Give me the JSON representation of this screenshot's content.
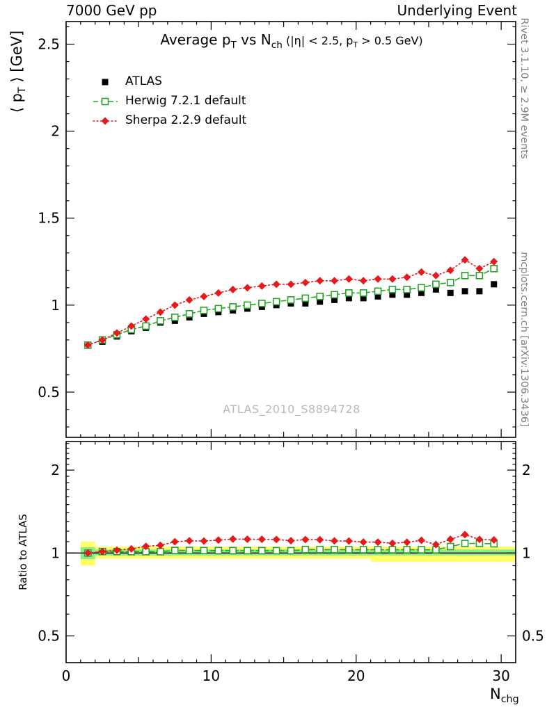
{
  "header": {
    "left": "7000 GeV pp",
    "right": "Underlying Event"
  },
  "title": {
    "pre": "Average p",
    "sub1": "T",
    "mid": " vs N",
    "sub2": "ch",
    "paren_pre": " (|η| < 2.5, p",
    "paren_sub": "T",
    "paren_post": " > 0.5 GeV)"
  },
  "axis": {
    "y_pre": "⟨ p",
    "y_sub": "T",
    "y_post": " ⟩ [GeV]",
    "ratio_label": "Ratio to ATLAS",
    "x_pre": "N",
    "x_sub": "chg"
  },
  "legend": {
    "entries": [
      {
        "label": "ATLAS"
      },
      {
        "label": "Herwig 7.2.1 default"
      },
      {
        "label": "Sherpa 2.2.9 default"
      }
    ]
  },
  "watermark": "ATLAS_2010_S8894728",
  "side_notes": {
    "top": "Rivet 3.1.10, ≥ 2.9M events",
    "bottom": "mcplots.cern.ch [arXiv:1306.3436]"
  },
  "chart_data": {
    "type": "scatter",
    "title": "Average pT vs Nch (|eta| < 2.5, pT > 0.5 GeV)",
    "xlabel": "Nchg",
    "ylabel": "<pT> [GeV]",
    "ratio_ylabel": "Ratio to ATLAS",
    "xlim": [
      0,
      31
    ],
    "xticks": [
      0,
      10,
      20,
      30
    ],
    "top": {
      "scale": "linear",
      "ylim": [
        0.24,
        2.63
      ],
      "yticks": [
        0.5,
        1,
        1.5,
        2,
        2.5
      ]
    },
    "ratio": {
      "scale": "log",
      "ylim": [
        0.4,
        2.54
      ],
      "yticks": [
        0.5,
        1,
        2
      ]
    },
    "x": [
      1.5,
      2.5,
      3.5,
      4.5,
      5.5,
      6.5,
      7.5,
      8.5,
      9.5,
      10.5,
      11.5,
      12.5,
      13.5,
      14.5,
      15.5,
      16.5,
      17.5,
      18.5,
      19.5,
      20.5,
      21.5,
      22.5,
      23.5,
      24.5,
      25.5,
      26.5,
      27.5,
      28.5,
      29.5
    ],
    "series": [
      {
        "name": "ATLAS",
        "marker": "filled-square",
        "color": "#000000",
        "line": "none",
        "values": [
          0.77,
          0.79,
          0.82,
          0.85,
          0.87,
          0.9,
          0.91,
          0.93,
          0.95,
          0.96,
          0.97,
          0.98,
          0.99,
          1.0,
          1.01,
          1.01,
          1.02,
          1.03,
          1.04,
          1.04,
          1.05,
          1.06,
          1.06,
          1.07,
          1.09,
          1.07,
          1.08,
          1.08,
          1.12
        ]
      },
      {
        "name": "Herwig 7.2.1 default",
        "marker": "open-square",
        "color": "#27a327",
        "line": "dashed",
        "values": [
          0.77,
          0.8,
          0.83,
          0.86,
          0.88,
          0.91,
          0.93,
          0.95,
          0.97,
          0.98,
          0.99,
          1.0,
          1.01,
          1.02,
          1.03,
          1.04,
          1.05,
          1.06,
          1.07,
          1.07,
          1.08,
          1.09,
          1.09,
          1.1,
          1.12,
          1.13,
          1.17,
          1.17,
          1.21
        ]
      },
      {
        "name": "Sherpa 2.2.9 default",
        "marker": "filled-diamond",
        "color": "#e41a1c",
        "line": "dotted",
        "values": [
          0.77,
          0.8,
          0.84,
          0.88,
          0.92,
          0.96,
          1.0,
          1.03,
          1.05,
          1.07,
          1.09,
          1.1,
          1.11,
          1.12,
          1.12,
          1.13,
          1.14,
          1.14,
          1.15,
          1.14,
          1.15,
          1.15,
          1.16,
          1.19,
          1.17,
          1.2,
          1.26,
          1.21,
          1.25
        ]
      }
    ],
    "ratio_reference": "ATLAS",
    "bands": {
      "yellow": [
        {
          "x0": 1,
          "x1": 2,
          "lo": 0.9,
          "hi": 1.1
        },
        {
          "x0": 2,
          "x1": 21,
          "lo": 0.955,
          "hi": 1.055
        },
        {
          "x0": 21,
          "x1": 31,
          "lo": 0.93,
          "hi": 1.055
        }
      ],
      "green": [
        {
          "x0": 1,
          "x1": 2,
          "lo": 0.95,
          "hi": 1.05
        },
        {
          "x0": 2,
          "x1": 31,
          "lo": 0.98,
          "hi": 1.03
        }
      ]
    },
    "colors": {
      "band_yellow": "#ffff66",
      "band_green": "#8cec8c",
      "reference_line": "#000000"
    }
  }
}
